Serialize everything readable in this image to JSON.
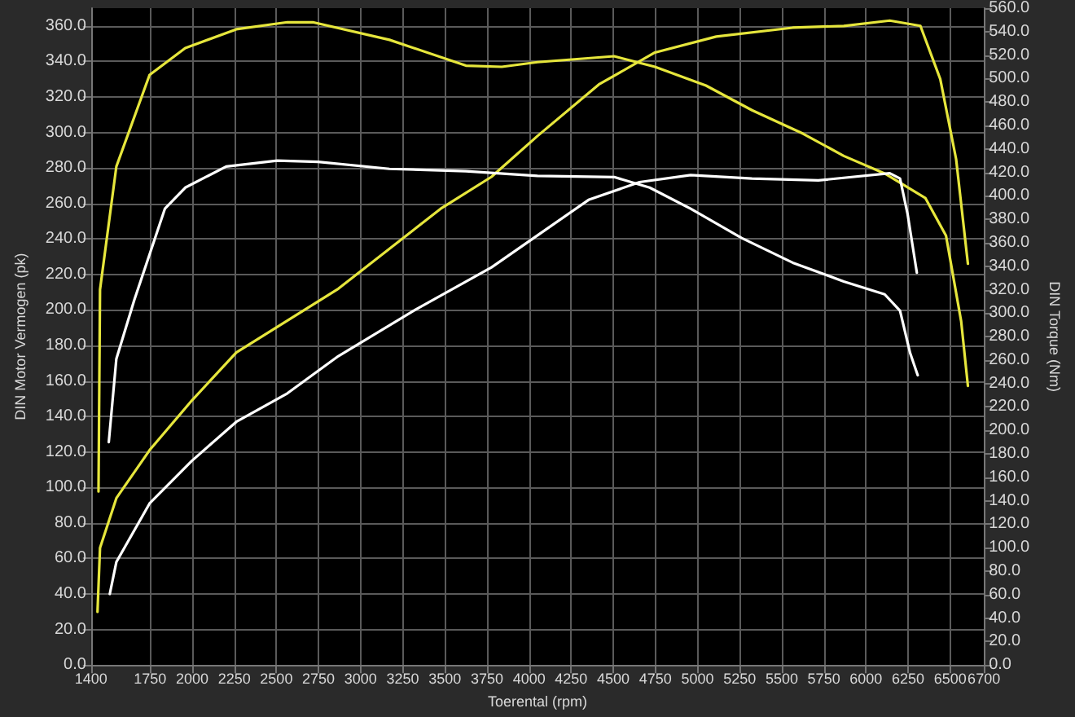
{
  "chart_data": {
    "type": "line",
    "xlabel": "Toerental (rpm)",
    "ylabel": "DIN Motor Vermogen (pk)",
    "y2label": "DIN Torque (Nm)",
    "xlim": [
      1400,
      6700
    ],
    "xticks": [
      1400,
      1750,
      2000,
      2250,
      2500,
      2750,
      3000,
      3250,
      3500,
      3750,
      4000,
      4250,
      4500,
      4750,
      5000,
      5250,
      5500,
      5750,
      6000,
      6250,
      6500,
      6700
    ],
    "ylim": [
      0,
      370
    ],
    "yticks": [
      {
        "value": 0,
        "label": "0.0"
      },
      {
        "value": 20,
        "label": "20.0"
      },
      {
        "value": 40,
        "label": "40.0"
      },
      {
        "value": 60,
        "label": "60.0"
      },
      {
        "value": 80,
        "label": "80.0"
      },
      {
        "value": 100,
        "label": "100.0"
      },
      {
        "value": 120,
        "label": "120.0"
      },
      {
        "value": 140,
        "label": "140.0"
      },
      {
        "value": 160,
        "label": "160.0"
      },
      {
        "value": 180,
        "label": "180.0"
      },
      {
        "value": 200,
        "label": "200.0"
      },
      {
        "value": 220,
        "label": "220.0"
      },
      {
        "value": 240,
        "label": "240.0"
      },
      {
        "value": 260,
        "label": "260.0"
      },
      {
        "value": 280,
        "label": "280.0"
      },
      {
        "value": 300,
        "label": "300.0"
      },
      {
        "value": 320,
        "label": "320.0"
      },
      {
        "value": 340,
        "label": "340.0"
      },
      {
        "value": 360,
        "label": "360.0"
      }
    ],
    "y2lim": [
      0,
      560
    ],
    "y2ticks": [
      {
        "value": 0,
        "label": "0.0"
      },
      {
        "value": 20,
        "label": "20.0"
      },
      {
        "value": 40,
        "label": "40.0"
      },
      {
        "value": 60,
        "label": "60.0"
      },
      {
        "value": 80,
        "label": "80.0"
      },
      {
        "value": 100,
        "label": "100.0"
      },
      {
        "value": 120,
        "label": "120.0"
      },
      {
        "value": 140,
        "label": "140.0"
      },
      {
        "value": 160,
        "label": "160.0"
      },
      {
        "value": 180,
        "label": "180.0"
      },
      {
        "value": 200,
        "label": "200.0"
      },
      {
        "value": 220,
        "label": "220.0"
      },
      {
        "value": 240,
        "label": "240.0"
      },
      {
        "value": 260,
        "label": "260.0"
      },
      {
        "value": 280,
        "label": "280.0"
      },
      {
        "value": 300,
        "label": "300.0"
      },
      {
        "value": 320,
        "label": "320.0"
      },
      {
        "value": 340,
        "label": "340.0"
      },
      {
        "value": 360,
        "label": "360.0"
      },
      {
        "value": 380,
        "label": "380.0"
      },
      {
        "value": 400,
        "label": "400.0"
      },
      {
        "value": 420,
        "label": "420.0"
      },
      {
        "value": 440,
        "label": "440.0"
      },
      {
        "value": 460,
        "label": "460.0"
      },
      {
        "value": 480,
        "label": "480.0"
      },
      {
        "value": 500,
        "label": "500.0"
      },
      {
        "value": 520,
        "label": "520.0"
      },
      {
        "value": 540,
        "label": "540.0"
      },
      {
        "value": 560,
        "label": "560.0"
      }
    ],
    "grid": true,
    "marker": "none",
    "line_style": "solid",
    "series": [
      {
        "color": "#e6e63c",
        "x": [
          1438,
          1453,
          1550,
          1747,
          1998,
          2262,
          2868,
          3475,
          3777,
          4050,
          4414,
          4747,
          5111,
          5565,
          5868,
          6141,
          6323,
          6441,
          6535,
          6605
        ],
        "values": [
          30,
          66,
          94,
          121,
          149,
          176,
          212,
          257,
          275,
          298,
          327,
          345,
          354,
          359,
          360,
          363,
          360,
          330,
          285,
          226
        ]
      },
      {
        "color": "#e6e63c",
        "axis": "y2",
        "x": [
          1444,
          1453,
          1550,
          1747,
          1959,
          2262,
          2565,
          2716,
          3171,
          3625,
          3838,
          4050,
          4505,
          4747,
          5050,
          5323,
          5626,
          5868,
          6111,
          6353,
          6475,
          6565,
          6605
        ],
        "values": [
          148,
          320,
          425,
          503,
          526,
          542,
          548,
          548,
          533,
          511,
          510,
          514,
          519,
          510,
          494,
          473,
          453,
          434,
          419,
          398,
          366,
          293,
          238
        ]
      },
      {
        "color": "#ffffff",
        "x": [
          1511,
          1550,
          1747,
          1998,
          2262,
          2565,
          2868,
          3323,
          3777,
          4050,
          4353,
          4656,
          4959,
          5323,
          5717,
          6141,
          6202,
          6247,
          6302
        ],
        "values": [
          40,
          58,
          91,
          115,
          137,
          153,
          174,
          200,
          224,
          242,
          262,
          272,
          276,
          274,
          273,
          277,
          274,
          254,
          221
        ]
      },
      {
        "color": "#ffffff",
        "axis": "y2",
        "x": [
          1505,
          1550,
          1656,
          1838,
          1959,
          2202,
          2505,
          2747,
          3171,
          3625,
          4050,
          4505,
          4716,
          4959,
          5262,
          5565,
          5868,
          6111,
          6202,
          6262,
          6307
        ],
        "values": [
          190,
          261,
          311,
          389,
          407,
          425,
          430,
          429,
          423,
          421,
          417,
          416,
          407,
          389,
          364,
          343,
          327,
          316,
          302,
          266,
          247
        ]
      }
    ]
  }
}
